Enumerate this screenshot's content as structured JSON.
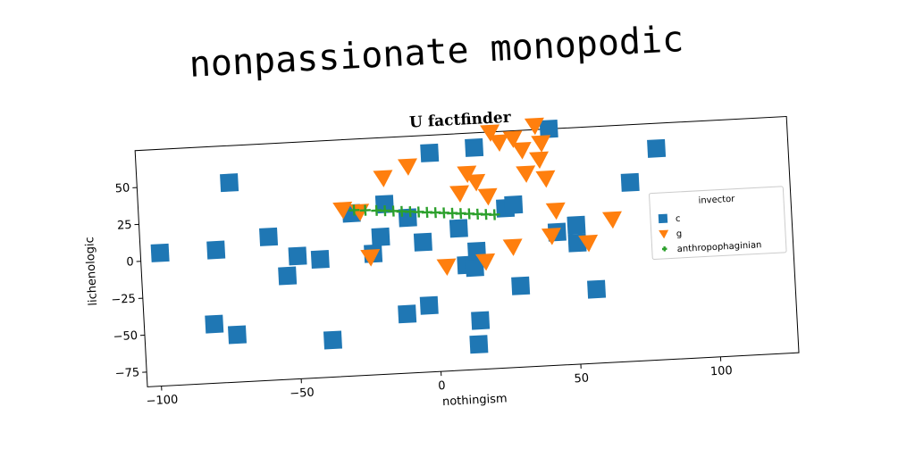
{
  "page": {
    "heading": "nonpassionate monopodic"
  },
  "chart_data": {
    "type": "scatter",
    "title": "U factfinder",
    "xlabel": "nothingism",
    "ylabel": "lichenologic",
    "xlim": [
      -105,
      128
    ],
    "ylim": [
      -85,
      75
    ],
    "xticks": [
      -100,
      -50,
      0,
      50,
      100
    ],
    "yticks": [
      -75,
      -50,
      -25,
      0,
      25,
      50
    ],
    "grid": false,
    "legend": {
      "title": "invector",
      "placement": "right"
    },
    "series": [
      {
        "name": "c",
        "marker": "square",
        "color": "#1f77b4",
        "points": [
          [
            -98,
            5
          ],
          [
            -78,
            5
          ],
          [
            -72,
            50
          ],
          [
            -59,
            12
          ],
          [
            -53,
            -15
          ],
          [
            -49,
            -2
          ],
          [
            -41,
            -5
          ],
          [
            -80,
            -45
          ],
          [
            -72,
            -53
          ],
          [
            -38,
            -60
          ],
          [
            -29,
            25
          ],
          [
            -22,
            -3
          ],
          [
            -19,
            8
          ],
          [
            -17,
            30
          ],
          [
            -9,
            20
          ],
          [
            -11,
            -45
          ],
          [
            -4,
            3
          ],
          [
            -3,
            -40
          ],
          [
            0,
            63
          ],
          [
            9,
            11
          ],
          [
            11,
            -14
          ],
          [
            14,
            -16
          ],
          [
            15,
            -5
          ],
          [
            16,
            65
          ],
          [
            15,
            -52
          ],
          [
            14,
            -68
          ],
          [
            26,
            23
          ],
          [
            29,
            25
          ],
          [
            30,
            -30
          ],
          [
            43,
            75
          ],
          [
            44,
            5
          ],
          [
            51,
            9
          ],
          [
            51,
            -3
          ],
          [
            57,
            -35
          ],
          [
            71,
            36
          ],
          [
            81,
            58
          ],
          [
            116,
            5
          ]
        ]
      },
      {
        "name": "g",
        "marker": "triangle-down",
        "color": "#ff7f0e",
        "points": [
          [
            -32,
            28
          ],
          [
            -26,
            26
          ],
          [
            -23,
            -5
          ],
          [
            -17,
            48
          ],
          [
            -8,
            55
          ],
          [
            4,
            -14
          ],
          [
            10,
            35
          ],
          [
            13,
            48
          ],
          [
            16,
            42
          ],
          [
            18,
            -12
          ],
          [
            20,
            32
          ],
          [
            22,
            75
          ],
          [
            25,
            68
          ],
          [
            28,
            -3
          ],
          [
            30,
            70
          ],
          [
            33,
            62
          ],
          [
            34,
            46
          ],
          [
            38,
            78
          ],
          [
            39,
            55
          ],
          [
            40,
            66
          ],
          [
            41,
            42
          ],
          [
            44,
            20
          ],
          [
            42,
            3
          ],
          [
            55,
            -3
          ],
          [
            64,
            12
          ]
        ]
      },
      {
        "name": "anthropophaginian",
        "marker": "plus",
        "color": "#2ca02c",
        "points": [
          [
            -28,
            27
          ],
          [
            -24,
            26.5
          ],
          [
            -20,
            26
          ],
          [
            -17,
            25.5
          ],
          [
            -14,
            25
          ],
          [
            -11,
            24.5
          ],
          [
            -8,
            24
          ],
          [
            -5,
            23.5
          ],
          [
            -2,
            23
          ],
          [
            1,
            22.5
          ],
          [
            4,
            22
          ],
          [
            7,
            21.5
          ],
          [
            10,
            21
          ],
          [
            13,
            20.5
          ],
          [
            16,
            20
          ],
          [
            19,
            19.5
          ],
          [
            22,
            19
          ]
        ]
      }
    ]
  }
}
